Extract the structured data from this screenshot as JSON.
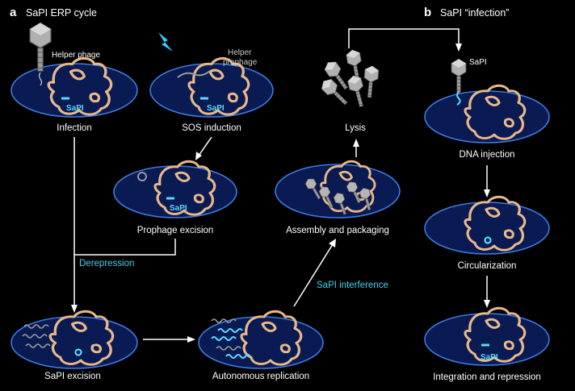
{
  "panel_a": {
    "letter": "a",
    "title": "SaPI ERP cycle",
    "labels": {
      "infection": "Infection",
      "sos_induction": "SOS induction",
      "prophage_excision": "Prophage excision",
      "derepression": "Derepression",
      "sapi_excision": "SaPI excision",
      "autonomous_replication": "Autonomous replication",
      "sapi_interference": "SaPI interference",
      "assembly_packaging": "Assembly and packaging",
      "lysis": "Lysis"
    },
    "annotations": {
      "helper_phage": "Helper phage",
      "helper_prophage_line1": "Helper",
      "helper_prophage_line2": "prophage",
      "sapi_1": "SaPI",
      "sapi_2": "SaPI",
      "sapi_3": "SaPI"
    }
  },
  "panel_b": {
    "letter": "b",
    "title": "SaPI “infection”",
    "labels": {
      "dna_injection": "DNA injection",
      "circularization": "Circularization",
      "integration_repression": "Integration and repression"
    },
    "annotations": {
      "sapi_phage": "SaPI",
      "sapi_integrated": "SaPI"
    }
  },
  "colors": {
    "cell_fill": "#0a1a52",
    "cell_stroke": "#3c7be0",
    "chromosome": "#e8b88a",
    "sapi": "#57d9ff",
    "label_cyan": "#43d1f0"
  }
}
